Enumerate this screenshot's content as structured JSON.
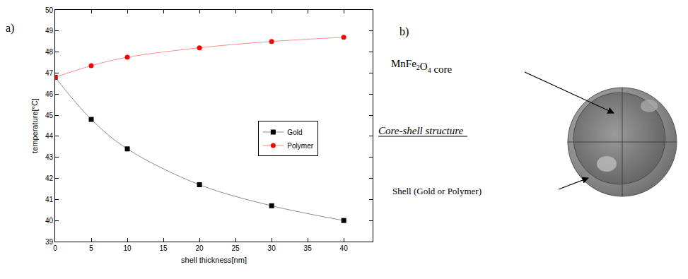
{
  "chart_data": {
    "type": "line",
    "x_label": "shell thickness[nm]",
    "y_label": "temperature[°C]",
    "x": [
      0,
      5,
      10,
      20,
      30,
      40
    ],
    "series": [
      {
        "name": "Gold",
        "color": "#000000",
        "marker": "square",
        "values": [
          46.8,
          44.8,
          43.4,
          41.7,
          40.7,
          40.0
        ]
      },
      {
        "name": "Polymer",
        "color": "#ff0000",
        "marker": "circle",
        "values": [
          46.8,
          47.35,
          47.75,
          48.2,
          48.5,
          48.7
        ]
      }
    ],
    "xlim": [
      0,
      44
    ],
    "xticks": [
      0,
      5,
      10,
      15,
      20,
      25,
      30,
      35,
      40
    ],
    "ylim": [
      39,
      50
    ],
    "yticks": [
      39,
      40,
      41,
      42,
      43,
      44,
      45,
      46,
      47,
      48,
      49,
      50
    ],
    "legend": "right",
    "grid": false
  },
  "panel_labels": [
    "a)",
    "b)"
  ],
  "diagram": {
    "title": "Core-shell structure",
    "core_label": "MnFe2O4 core",
    "shell_label": "Shell (Gold or Polymer)"
  }
}
